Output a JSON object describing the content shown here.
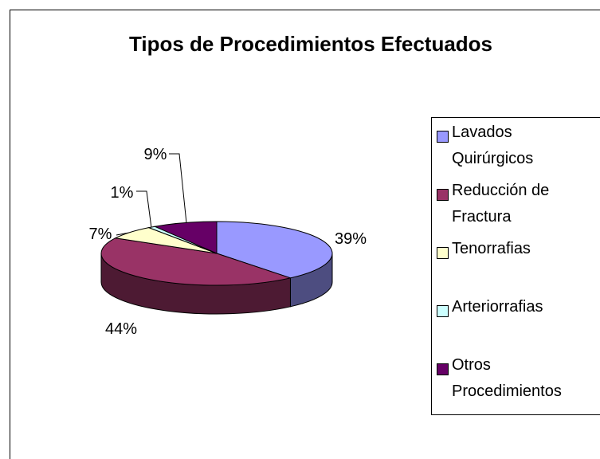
{
  "chart_data": {
    "type": "pie",
    "title": "Tipos de Procedimientos Efectuados",
    "categories": [
      "Lavados Quirúrgicos",
      "Reducción de Fractura",
      "Tenorrafias",
      "Arteriorrafias",
      "Otros Procedimientos"
    ],
    "values": [
      39,
      44,
      7,
      1,
      9
    ],
    "value_labels": [
      "39%",
      "44%",
      "7%",
      "1%",
      "9%"
    ],
    "colors": [
      "#9999ff",
      "#993366",
      "#ffffcc",
      "#ccffff",
      "#660066"
    ],
    "legend": "right"
  }
}
